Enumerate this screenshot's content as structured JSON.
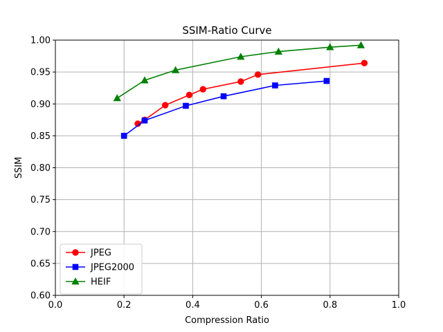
{
  "chart_data": {
    "type": "line",
    "title": "SSIM-Ratio Curve",
    "xlabel": "Compression Ratio",
    "ylabel": "SSIM",
    "xlim": [
      0.0,
      1.0
    ],
    "ylim": [
      0.6,
      1.0
    ],
    "xticks": [
      "0.0",
      "0.2",
      "0.4",
      "0.6",
      "0.8",
      "1.0"
    ],
    "yticks": [
      "0.60",
      "0.65",
      "0.70",
      "0.75",
      "0.80",
      "0.85",
      "0.90",
      "0.95",
      "1.00"
    ],
    "grid": true,
    "legend_position": "lower left",
    "series": [
      {
        "name": "JPEG",
        "color": "#ff0000",
        "marker": "circle",
        "x": [
          0.24,
          0.26,
          0.32,
          0.39,
          0.43,
          0.54,
          0.59,
          0.9
        ],
        "y": [
          0.869,
          0.875,
          0.898,
          0.914,
          0.923,
          0.935,
          0.946,
          0.964
        ]
      },
      {
        "name": "JPEG2000",
        "color": "#0000ff",
        "marker": "square",
        "x": [
          0.2,
          0.26,
          0.38,
          0.49,
          0.64,
          0.79
        ],
        "y": [
          0.85,
          0.874,
          0.897,
          0.912,
          0.929,
          0.936
        ]
      },
      {
        "name": "HEIF",
        "color": "#008000",
        "marker": "triangle",
        "x": [
          0.18,
          0.26,
          0.35,
          0.54,
          0.65,
          0.8,
          0.89
        ],
        "y": [
          0.909,
          0.937,
          0.953,
          0.974,
          0.982,
          0.989,
          0.992
        ]
      }
    ]
  }
}
